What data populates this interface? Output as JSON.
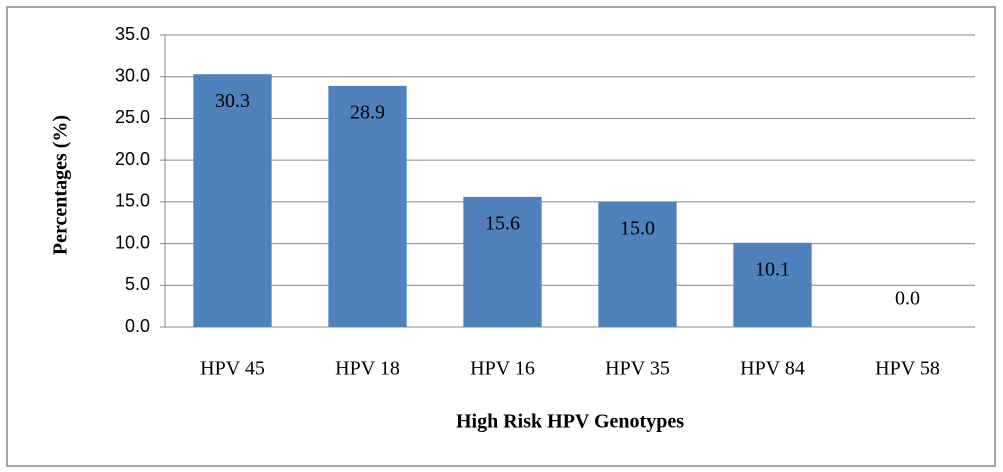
{
  "chart_data": {
    "type": "bar",
    "x_label": "High Risk HPV Genotypes",
    "y_label": "Percentages (%)",
    "categories": [
      "HPV 45",
      "HPV 18",
      "HPV 16",
      "HPV 35",
      "HPV 84",
      "HPV 58"
    ],
    "values": [
      30.3,
      28.9,
      15.6,
      15.0,
      10.1,
      0.0
    ],
    "value_labels": [
      "30.3",
      "28.9",
      "15.6",
      "15.0",
      "10.1",
      "0.0"
    ],
    "color": "#4f81bd",
    "ylim": [
      0,
      35
    ],
    "yticks": [
      {
        "value": 0,
        "label": "0.0"
      },
      {
        "value": 5,
        "label": "5.0"
      },
      {
        "value": 10,
        "label": "10.0"
      },
      {
        "value": 15,
        "label": "15.0"
      },
      {
        "value": 20,
        "label": "20.0"
      },
      {
        "value": 25,
        "label": "25.0"
      },
      {
        "value": 30,
        "label": "30.0"
      },
      {
        "value": 35,
        "label": "35.0"
      }
    ],
    "grid": true
  }
}
